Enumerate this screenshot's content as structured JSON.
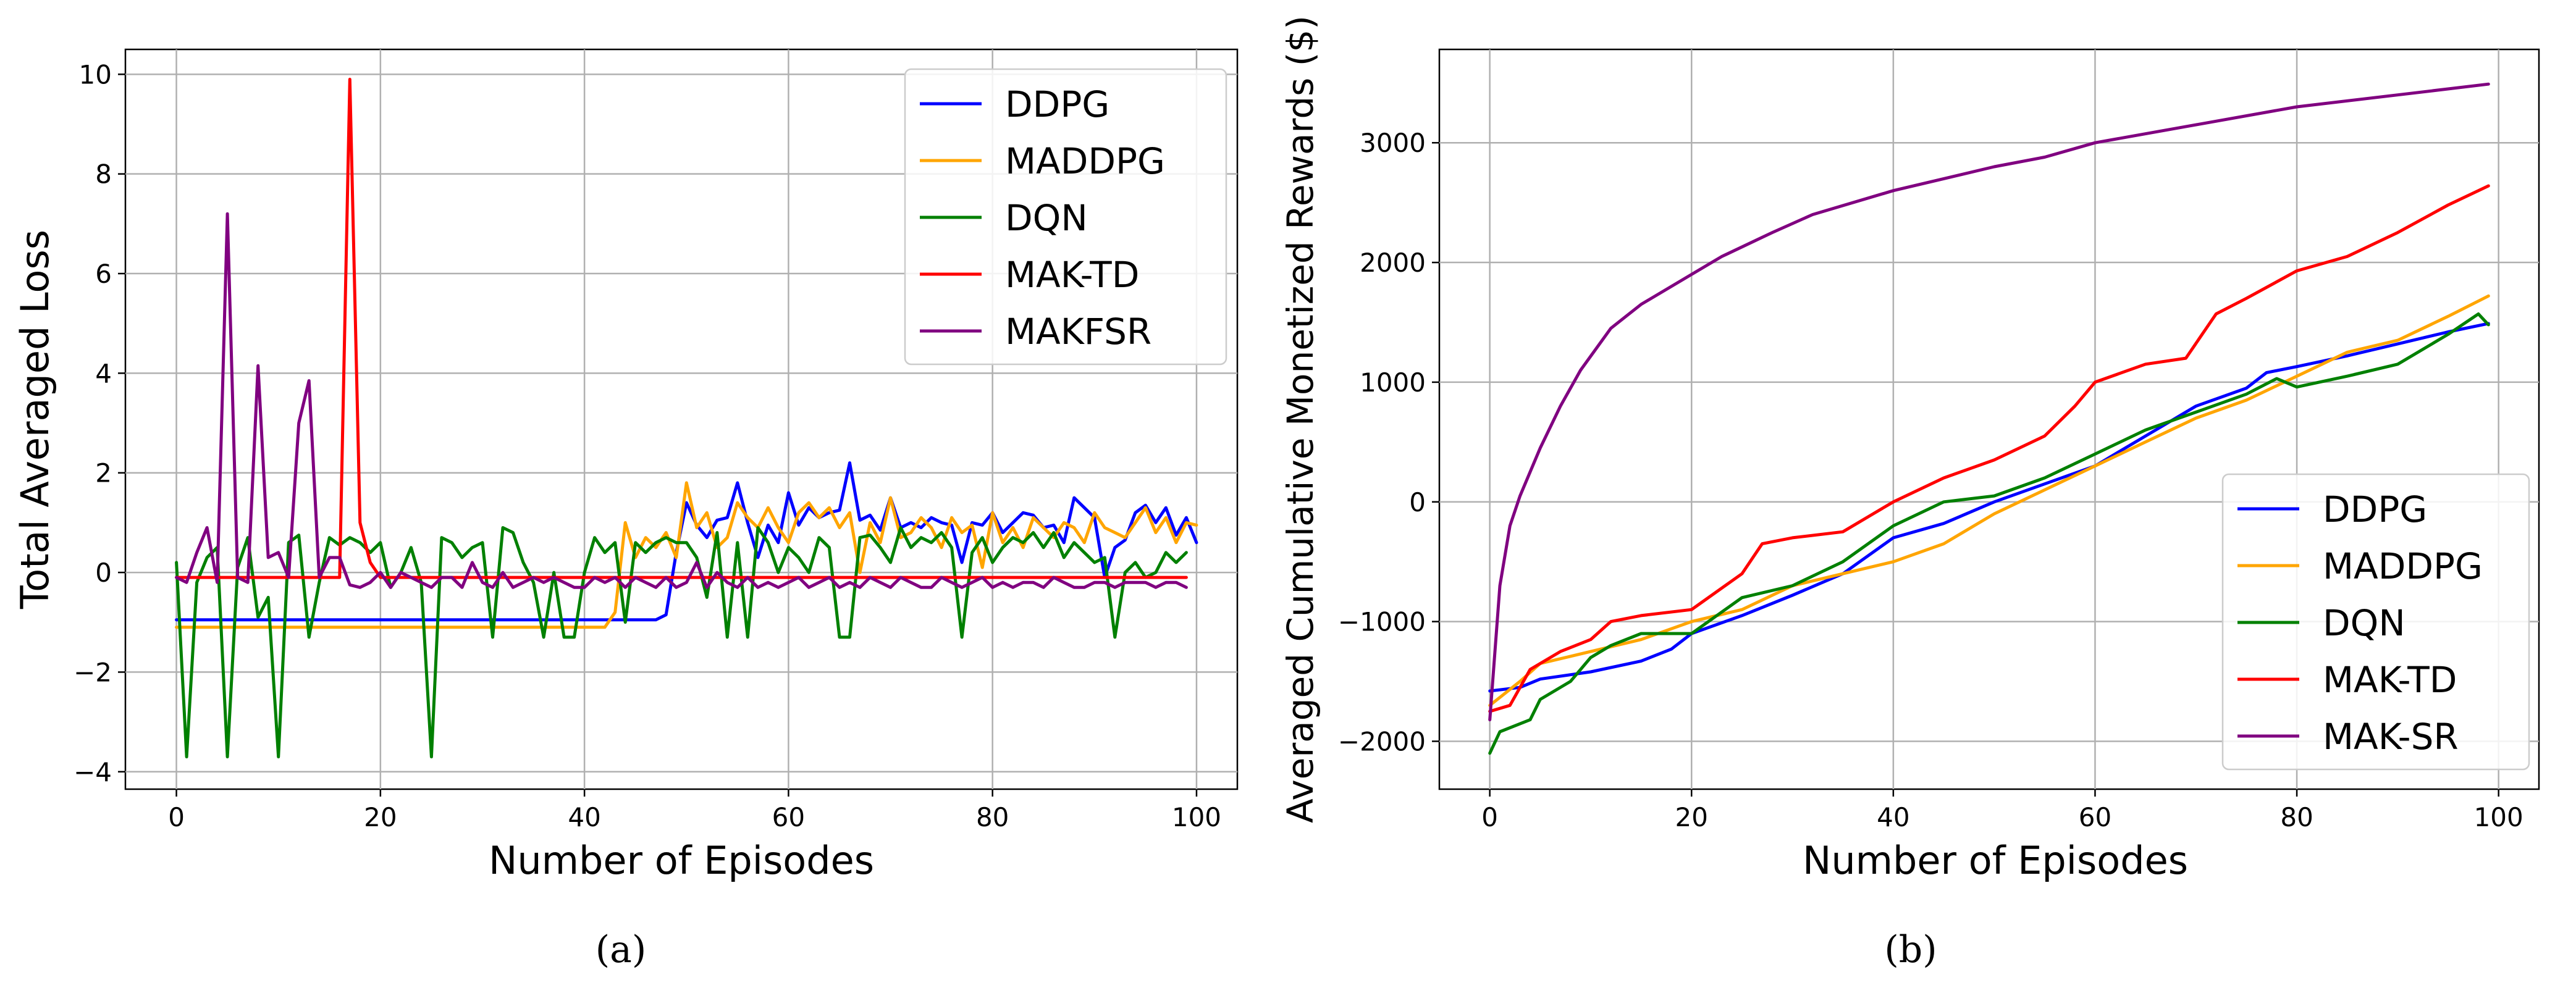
{
  "chart_data": [
    {
      "id": "a",
      "type": "line",
      "caption": "(a)",
      "title": "",
      "xlabel": "Number of Episodes",
      "ylabel": "Total Averaged Loss",
      "xlim": [
        -5,
        104
      ],
      "ylim": [
        -4.35,
        10.5
      ],
      "xticks": [
        0,
        20,
        40,
        60,
        80,
        100
      ],
      "yticks": [
        -4,
        -2,
        0,
        2,
        4,
        6,
        8,
        10
      ],
      "grid": true,
      "legend_position": "top-right",
      "series": [
        {
          "name": "DDPG",
          "color": "#0000ff",
          "values": [
            -0.95,
            -0.95,
            -0.95,
            -0.95,
            -0.95,
            -0.95,
            -0.95,
            -0.95,
            -0.95,
            -0.95,
            -0.95,
            -0.95,
            -0.95,
            -0.95,
            -0.95,
            -0.95,
            -0.95,
            -0.95,
            -0.95,
            -0.95,
            -0.95,
            -0.95,
            -0.95,
            -0.95,
            -0.95,
            -0.95,
            -0.95,
            -0.95,
            -0.95,
            -0.95,
            -0.95,
            -0.95,
            -0.95,
            -0.95,
            -0.95,
            -0.95,
            -0.95,
            -0.95,
            -0.95,
            -0.95,
            -0.95,
            -0.95,
            -0.95,
            -0.95,
            -0.95,
            -0.95,
            -0.95,
            -0.95,
            -0.85,
            0.4,
            1.4,
            0.95,
            0.7,
            1.05,
            1.1,
            1.8,
            1.0,
            0.3,
            0.95,
            0.6,
            1.6,
            0.95,
            1.3,
            1.1,
            1.2,
            1.25,
            2.2,
            1.05,
            1.15,
            0.85,
            1.5,
            0.9,
            1.0,
            0.9,
            1.1,
            1.0,
            0.95,
            0.2,
            1.0,
            0.95,
            1.2,
            0.8,
            1.0,
            1.2,
            1.15,
            0.9,
            0.95,
            0.6,
            1.5,
            1.3,
            1.1,
            -0.1,
            0.5,
            0.65,
            1.2,
            1.35,
            1.0,
            1.3,
            0.75,
            1.1,
            0.6
          ],
          "sparse": true
        },
        {
          "name": "MADDPG",
          "color": "#ffa500",
          "values": [
            -1.1,
            -1.1,
            -1.1,
            -1.1,
            -1.1,
            -1.1,
            -1.1,
            -1.1,
            -1.1,
            -1.1,
            -1.1,
            -1.1,
            -1.1,
            -1.1,
            -1.1,
            -1.1,
            -1.1,
            -1.1,
            -1.1,
            -1.1,
            -1.1,
            -1.1,
            -1.1,
            -1.1,
            -1.1,
            -1.1,
            -1.1,
            -1.1,
            -1.1,
            -1.1,
            -1.1,
            -1.1,
            -1.1,
            -1.1,
            -1.1,
            -1.1,
            -1.1,
            -1.1,
            -1.1,
            -1.1,
            -1.1,
            -1.1,
            -1.1,
            -0.8,
            1.0,
            0.3,
            0.7,
            0.5,
            0.8,
            0.3,
            1.8,
            0.9,
            1.2,
            0.5,
            0.7,
            1.4,
            1.1,
            0.9,
            1.3,
            0.9,
            0.6,
            1.2,
            1.4,
            1.1,
            1.3,
            0.9,
            1.2,
            0.0,
            1.0,
            0.6,
            1.5,
            0.7,
            0.8,
            1.1,
            0.9,
            0.5,
            1.1,
            0.8,
            0.95,
            0.1,
            1.2,
            0.6,
            0.9,
            0.5,
            1.1,
            0.9,
            0.7,
            1.0,
            0.9,
            0.6,
            1.2,
            0.9,
            0.8,
            0.7,
            1.0,
            1.3,
            0.8,
            1.1,
            0.6,
            1.0,
            0.95
          ]
        },
        {
          "name": "DQN",
          "color": "#008000",
          "values": [
            0.2,
            -3.7,
            -0.2,
            0.3,
            0.5,
            -3.7,
            0.1,
            0.7,
            -0.9,
            -0.5,
            -3.7,
            0.6,
            0.75,
            -1.3,
            -0.2,
            0.7,
            0.55,
            0.7,
            0.6,
            0.4,
            0.6,
            -0.3,
            0.0,
            0.5,
            -0.2,
            -3.7,
            0.7,
            0.6,
            0.3,
            0.5,
            0.6,
            -1.3,
            0.9,
            0.8,
            0.2,
            -0.2,
            -1.3,
            0.0,
            -1.3,
            -1.3,
            0.0,
            0.7,
            0.4,
            0.6,
            -1.0,
            0.6,
            0.4,
            0.6,
            0.7,
            0.6,
            0.6,
            0.3,
            -0.5,
            0.8,
            -1.3,
            0.6,
            -1.3,
            0.9,
            0.6,
            0.0,
            0.5,
            0.3,
            0.0,
            0.7,
            0.5,
            -1.3,
            -1.3,
            0.7,
            0.75,
            0.5,
            0.2,
            0.9,
            0.5,
            0.7,
            0.6,
            0.8,
            0.5,
            -1.3,
            0.4,
            0.7,
            0.2,
            0.5,
            0.7,
            0.6,
            0.8,
            0.5,
            0.8,
            0.3,
            0.6,
            0.4,
            0.2,
            0.3,
            -1.3,
            0.0,
            0.2,
            -0.1,
            0.0,
            0.4,
            0.2,
            0.4
          ]
        },
        {
          "name": "MAK-TD",
          "color": "#ff0000",
          "values": [
            -0.1,
            -0.1,
            -0.1,
            -0.1,
            -0.1,
            -0.1,
            -0.1,
            -0.1,
            -0.1,
            -0.1,
            -0.1,
            -0.1,
            -0.1,
            -0.1,
            -0.1,
            -0.1,
            -0.1,
            9.9,
            1.0,
            0.2,
            -0.1,
            -0.1,
            -0.1,
            -0.1,
            -0.1,
            -0.1,
            -0.1,
            -0.1,
            -0.1,
            -0.1,
            -0.1,
            -0.1,
            -0.1,
            -0.1,
            -0.1,
            -0.1,
            -0.1,
            -0.1,
            -0.1,
            -0.1,
            -0.1,
            -0.1,
            -0.1,
            -0.1,
            -0.1,
            -0.1,
            -0.1,
            -0.1,
            -0.1,
            -0.1,
            -0.1,
            -0.1,
            -0.1,
            -0.1,
            -0.1,
            -0.1,
            -0.1,
            -0.1,
            -0.1,
            -0.1,
            -0.1,
            -0.1,
            -0.1,
            -0.1,
            -0.1,
            -0.1,
            -0.1,
            -0.1,
            -0.1,
            -0.1,
            -0.1,
            -0.1,
            -0.1,
            -0.1,
            -0.1,
            -0.1,
            -0.1,
            -0.1,
            -0.1,
            -0.1,
            -0.1,
            -0.1,
            -0.1,
            -0.1,
            -0.1,
            -0.1,
            -0.1,
            -0.1,
            -0.1,
            -0.1,
            -0.1,
            -0.1,
            -0.1,
            -0.1,
            -0.1,
            -0.1,
            -0.1,
            -0.1,
            -0.1,
            -0.1
          ]
        },
        {
          "name": "MAKFSR",
          "color": "#800080",
          "values": [
            -0.1,
            -0.2,
            0.4,
            0.9,
            -0.2,
            7.2,
            -0.1,
            -0.2,
            4.15,
            0.3,
            0.4,
            -0.1,
            3.0,
            3.85,
            -0.1,
            0.3,
            0.3,
            -0.25,
            -0.3,
            -0.2,
            0.0,
            -0.3,
            0.0,
            -0.1,
            -0.2,
            -0.3,
            -0.1,
            -0.1,
            -0.3,
            0.2,
            -0.2,
            -0.3,
            0.0,
            -0.3,
            -0.2,
            -0.1,
            -0.2,
            -0.1,
            -0.2,
            -0.3,
            -0.3,
            -0.1,
            -0.2,
            -0.1,
            -0.3,
            -0.1,
            -0.2,
            -0.3,
            -0.1,
            -0.3,
            -0.2,
            0.2,
            -0.3,
            0.0,
            -0.2,
            -0.3,
            -0.1,
            -0.3,
            -0.2,
            -0.3,
            -0.2,
            -0.1,
            -0.3,
            -0.2,
            -0.1,
            -0.3,
            -0.2,
            -0.3,
            -0.1,
            -0.2,
            -0.3,
            -0.1,
            -0.2,
            -0.3,
            -0.3,
            -0.1,
            -0.2,
            -0.3,
            -0.2,
            -0.1,
            -0.3,
            -0.2,
            -0.3,
            -0.2,
            -0.2,
            -0.3,
            -0.1,
            -0.2,
            -0.3,
            -0.3,
            -0.2,
            -0.2,
            -0.3,
            -0.2,
            -0.2,
            -0.2,
            -0.3,
            -0.2,
            -0.2,
            -0.3
          ]
        }
      ]
    },
    {
      "id": "b",
      "type": "line",
      "caption": "(b)",
      "title": "",
      "xlabel": "Number of Episodes",
      "ylabel": "Averaged Cumulative Monetized Rewards ($)",
      "xlim": [
        -5,
        104
      ],
      "ylim": [
        -2400,
        3780
      ],
      "xticks": [
        0,
        20,
        40,
        60,
        80,
        100
      ],
      "yticks": [
        -2000,
        -1000,
        0,
        1000,
        2000,
        3000
      ],
      "grid": true,
      "legend_position": "bottom-right",
      "series": [
        {
          "name": "DDPG",
          "color": "#0000ff",
          "points": [
            [
              0,
              -1580
            ],
            [
              3,
              -1550
            ],
            [
              5,
              -1480
            ],
            [
              10,
              -1420
            ],
            [
              15,
              -1330
            ],
            [
              18,
              -1230
            ],
            [
              20,
              -1100
            ],
            [
              25,
              -950
            ],
            [
              30,
              -780
            ],
            [
              35,
              -600
            ],
            [
              40,
              -300
            ],
            [
              45,
              -180
            ],
            [
              50,
              0
            ],
            [
              55,
              150
            ],
            [
              60,
              300
            ],
            [
              65,
              550
            ],
            [
              70,
              800
            ],
            [
              75,
              950
            ],
            [
              77,
              1080
            ],
            [
              80,
              1130
            ],
            [
              85,
              1220
            ],
            [
              90,
              1320
            ],
            [
              95,
              1420
            ],
            [
              99,
              1490
            ]
          ]
        },
        {
          "name": "MADDPG",
          "color": "#ffa500",
          "points": [
            [
              0,
              -1700
            ],
            [
              3,
              -1500
            ],
            [
              5,
              -1350
            ],
            [
              10,
              -1250
            ],
            [
              15,
              -1150
            ],
            [
              20,
              -1000
            ],
            [
              25,
              -900
            ],
            [
              30,
              -700
            ],
            [
              35,
              -600
            ],
            [
              40,
              -500
            ],
            [
              45,
              -350
            ],
            [
              48,
              -200
            ],
            [
              50,
              -100
            ],
            [
              55,
              100
            ],
            [
              60,
              300
            ],
            [
              65,
              500
            ],
            [
              70,
              700
            ],
            [
              75,
              850
            ],
            [
              80,
              1050
            ],
            [
              85,
              1250
            ],
            [
              90,
              1350
            ],
            [
              95,
              1550
            ],
            [
              99,
              1720
            ]
          ]
        },
        {
          "name": "DQN",
          "color": "#008000",
          "points": [
            [
              0,
              -2100
            ],
            [
              1,
              -1920
            ],
            [
              4,
              -1820
            ],
            [
              5,
              -1650
            ],
            [
              8,
              -1500
            ],
            [
              10,
              -1300
            ],
            [
              12,
              -1200
            ],
            [
              15,
              -1100
            ],
            [
              20,
              -1100
            ],
            [
              25,
              -800
            ],
            [
              30,
              -700
            ],
            [
              35,
              -500
            ],
            [
              40,
              -200
            ],
            [
              45,
              0
            ],
            [
              50,
              50
            ],
            [
              55,
              200
            ],
            [
              60,
              400
            ],
            [
              65,
              600
            ],
            [
              70,
              750
            ],
            [
              75,
              900
            ],
            [
              78,
              1030
            ],
            [
              80,
              960
            ],
            [
              85,
              1050
            ],
            [
              90,
              1150
            ],
            [
              95,
              1400
            ],
            [
              98,
              1570
            ],
            [
              99,
              1480
            ]
          ]
        },
        {
          "name": "MAK-TD",
          "color": "#ff0000",
          "points": [
            [
              0,
              -1750
            ],
            [
              2,
              -1700
            ],
            [
              4,
              -1400
            ],
            [
              7,
              -1250
            ],
            [
              10,
              -1150
            ],
            [
              12,
              -1000
            ],
            [
              15,
              -950
            ],
            [
              20,
              -900
            ],
            [
              25,
              -600
            ],
            [
              27,
              -350
            ],
            [
              30,
              -300
            ],
            [
              35,
              -250
            ],
            [
              38,
              -100
            ],
            [
              40,
              0
            ],
            [
              45,
              200
            ],
            [
              50,
              350
            ],
            [
              55,
              550
            ],
            [
              58,
              800
            ],
            [
              60,
              1000
            ],
            [
              65,
              1150
            ],
            [
              69,
              1200
            ],
            [
              72,
              1570
            ],
            [
              75,
              1700
            ],
            [
              80,
              1930
            ],
            [
              85,
              2050
            ],
            [
              90,
              2250
            ],
            [
              95,
              2480
            ],
            [
              99,
              2640
            ]
          ]
        },
        {
          "name": "MAK-SR",
          "color": "#800080",
          "points": [
            [
              0,
              -1820
            ],
            [
              1,
              -700
            ],
            [
              2,
              -200
            ],
            [
              3,
              50
            ],
            [
              5,
              450
            ],
            [
              7,
              800
            ],
            [
              9,
              1100
            ],
            [
              12,
              1450
            ],
            [
              15,
              1650
            ],
            [
              20,
              1900
            ],
            [
              23,
              2050
            ],
            [
              28,
              2250
            ],
            [
              32,
              2400
            ],
            [
              40,
              2600
            ],
            [
              45,
              2700
            ],
            [
              50,
              2800
            ],
            [
              55,
              2880
            ],
            [
              60,
              3000
            ],
            [
              70,
              3150
            ],
            [
              80,
              3300
            ],
            [
              90,
              3400
            ],
            [
              99,
              3490
            ]
          ]
        }
      ]
    }
  ]
}
